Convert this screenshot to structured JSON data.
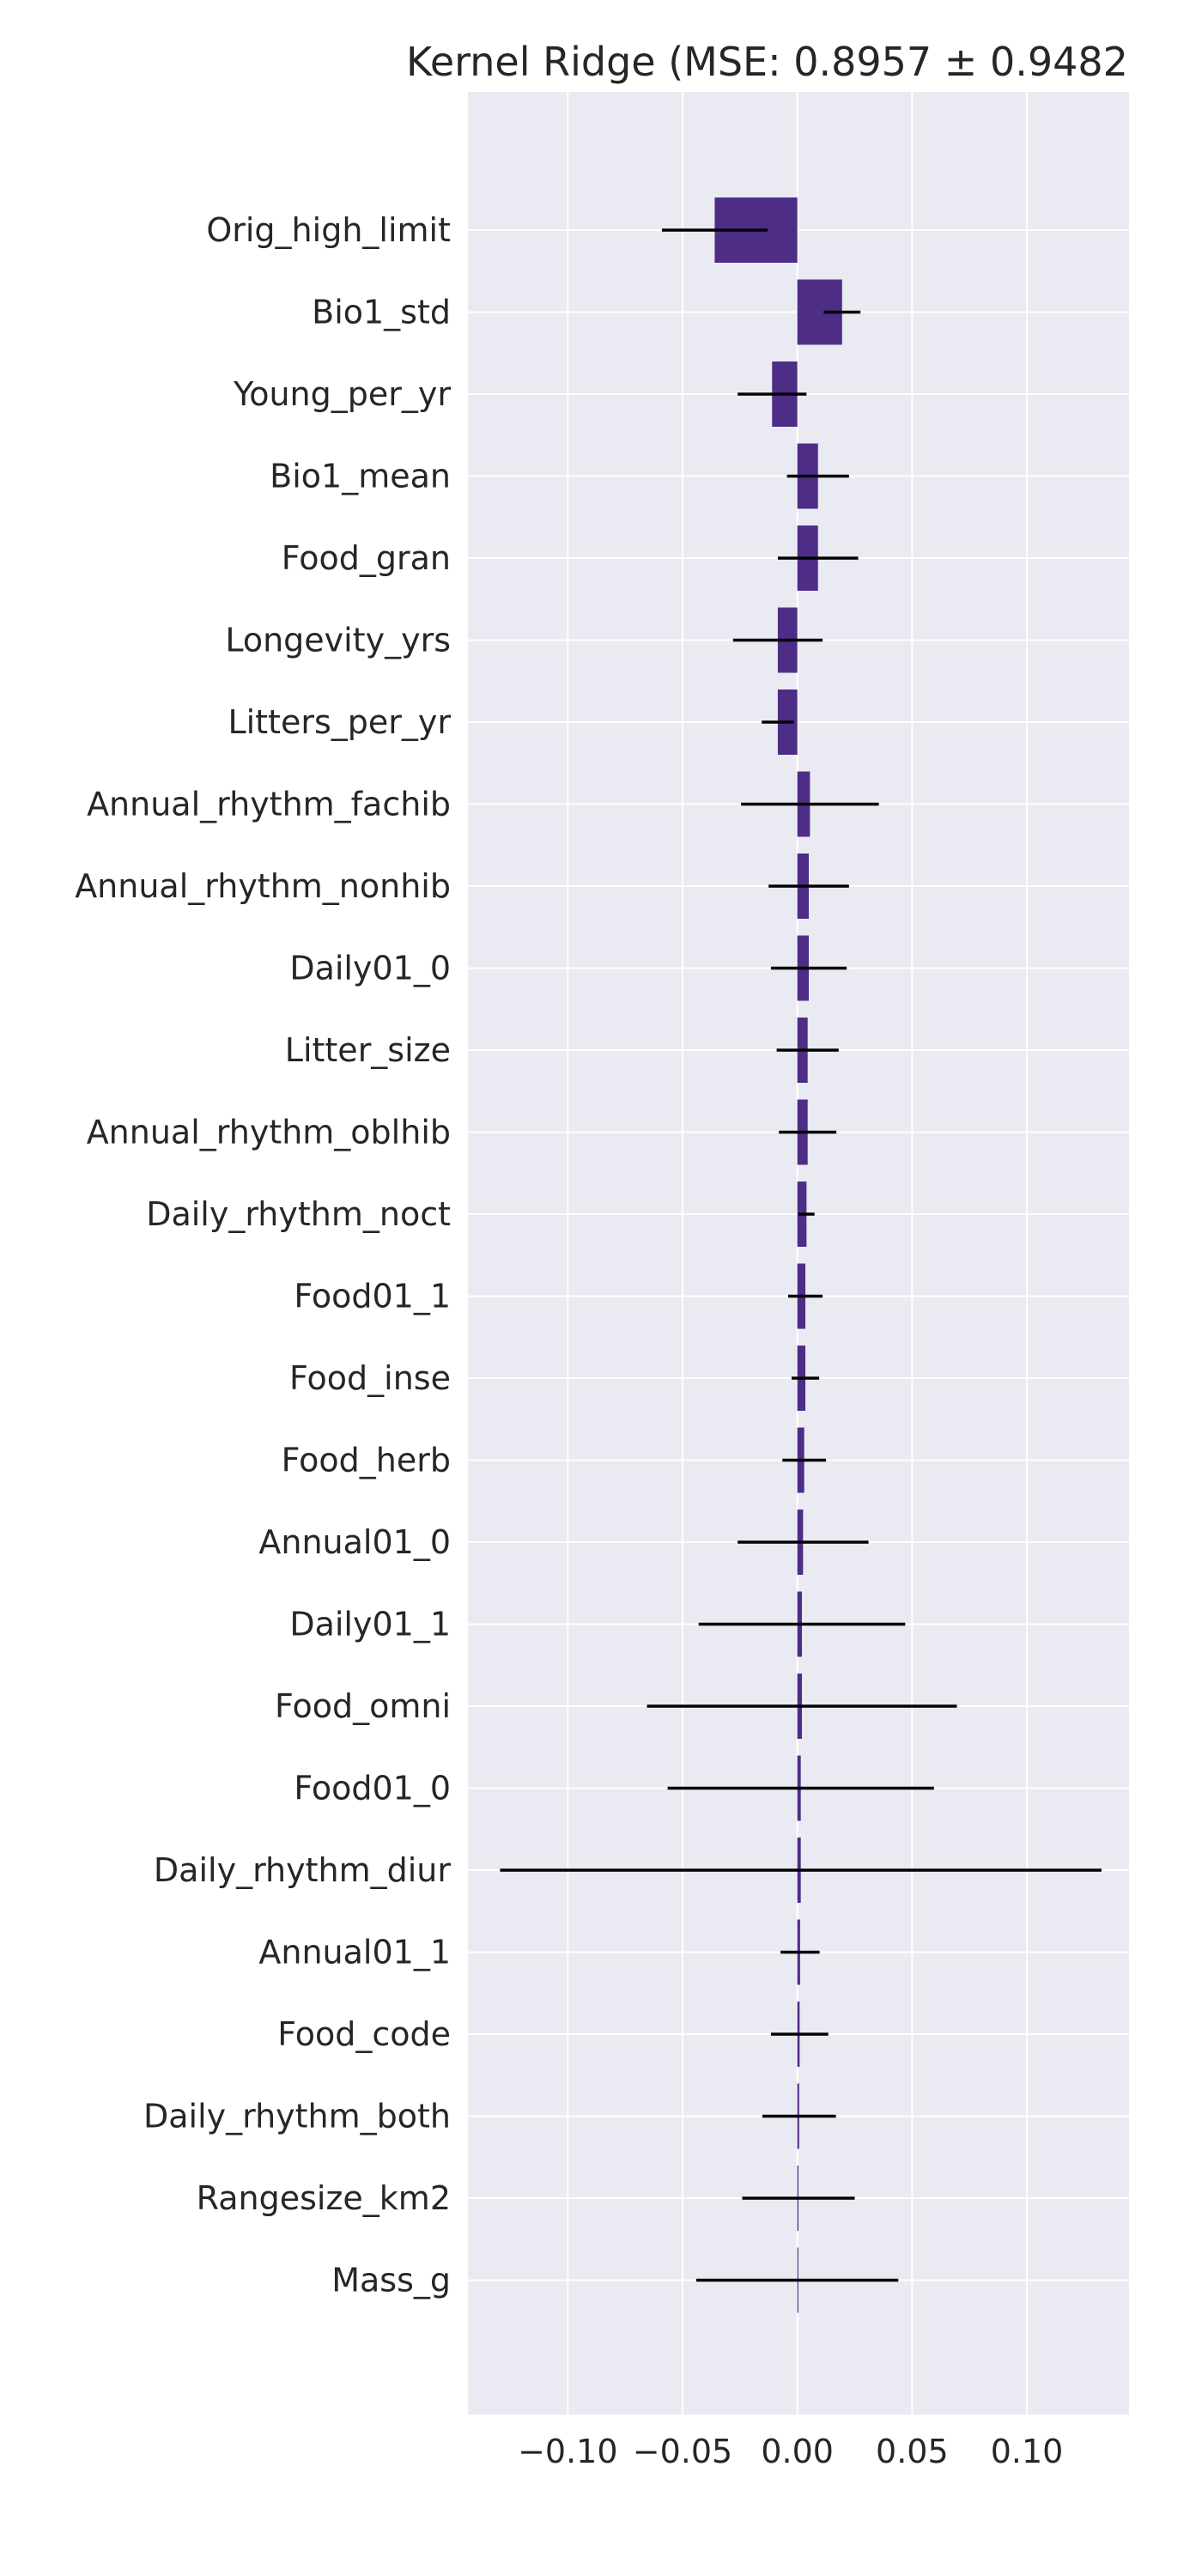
{
  "chart_data": {
    "type": "bar",
    "orientation": "horizontal",
    "title": "Kernel Ridge (MSE: 0.8957 ± 0.9482",
    "xlabel": "",
    "ylabel": "",
    "xlim": [
      -0.1435,
      0.1445
    ],
    "grid": true,
    "bar_color": "#4e2d87",
    "error_color": "#000000",
    "background_color": "#eaeaf2",
    "categories": [
      "Orig_high_limit",
      "Bio1_std",
      "Young_per_yr",
      "Bio1_mean",
      "Food_gran",
      "Longevity_yrs",
      "Litters_per_yr",
      "Annual_rhythm_fachib",
      "Annual_rhythm_nonhib",
      "Daily01_0",
      "Litter_size",
      "Annual_rhythm_oblhib",
      "Daily_rhythm_noct",
      "Food01_1",
      "Food_inse",
      "Food_herb",
      "Annual01_0",
      "Daily01_1",
      "Food_omni",
      "Food01_0",
      "Daily_rhythm_diur",
      "Annual01_1",
      "Food_code",
      "Daily_rhythm_both",
      "Rangesize_km2",
      "Mass_g"
    ],
    "values": [
      -0.036,
      0.0195,
      -0.011,
      0.009,
      0.009,
      -0.0085,
      -0.0085,
      0.0055,
      0.005,
      0.005,
      0.0045,
      0.0045,
      0.004,
      0.0035,
      0.0035,
      0.003,
      0.0025,
      0.002,
      0.002,
      0.0015,
      0.0015,
      0.0012,
      0.001,
      0.0008,
      0.0005,
      0.0
    ],
    "errors": [
      0.023,
      0.008,
      0.015,
      0.0135,
      0.0175,
      0.0195,
      0.007,
      0.03,
      0.0175,
      0.0165,
      0.0135,
      0.0125,
      0.0035,
      0.0075,
      0.006,
      0.0095,
      0.0285,
      0.045,
      0.0675,
      0.058,
      0.131,
      0.0085,
      0.0125,
      0.016,
      0.0245,
      0.044
    ],
    "xticks": [
      -0.1,
      -0.05,
      0.0,
      0.05,
      0.1
    ],
    "xtick_labels": [
      "−0.10",
      "−0.05",
      "0.00",
      "0.05",
      "0.10"
    ]
  }
}
